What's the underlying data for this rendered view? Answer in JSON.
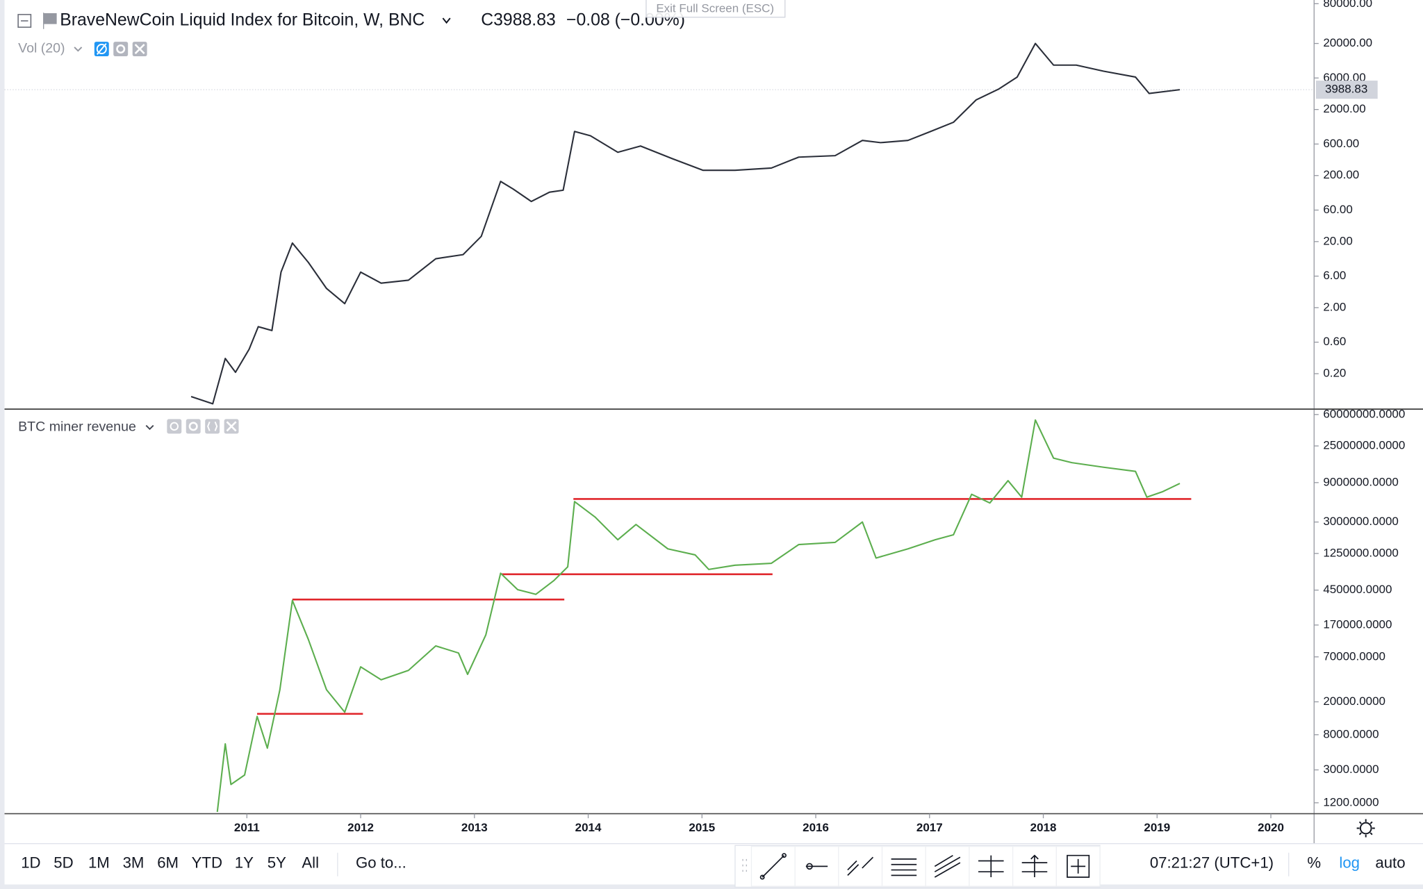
{
  "chart_data": [
    {
      "type": "line",
      "title": "BraveNewCoin Liquid Index for Bitcoin, W, BNC",
      "close_label": "C3988.83",
      "change_label": "−0.08 (−0.00%)",
      "indicator": "Vol (20)",
      "log_scale": true,
      "color": "#2a2e39",
      "x": [
        2010.51,
        2010.7,
        2010.81,
        2010.9,
        2011.02,
        2011.1,
        2011.22,
        2011.3,
        2011.4,
        2011.54,
        2011.7,
        2011.86,
        2012.0,
        2012.18,
        2012.42,
        2012.66,
        2012.9,
        2013.06,
        2013.23,
        2013.34,
        2013.5,
        2013.66,
        2013.78,
        2013.88,
        2014.02,
        2014.26,
        2014.46,
        2014.74,
        2015.01,
        2015.29,
        2015.61,
        2015.85,
        2016.17,
        2016.41,
        2016.57,
        2016.81,
        2017.01,
        2017.21,
        2017.41,
        2017.61,
        2017.77,
        2017.93,
        2018.09,
        2018.29,
        2018.53,
        2018.81,
        2018.93,
        2019.2
      ],
      "values": [
        0.09,
        0.07,
        0.34,
        0.21,
        0.47,
        1.03,
        0.9,
        6.9,
        19,
        9.7,
        3.9,
        2.3,
        6.9,
        4.7,
        5.2,
        11,
        12.7,
        24,
        163,
        125,
        81,
        112,
        120,
        930,
        800,
        450,
        560,
        360,
        240,
        240,
        260,
        380,
        400,
        680,
        630,
        680,
        930,
        1280,
        2800,
        4100,
        6200,
        20000,
        9400,
        9400,
        7600,
        6200,
        3500,
        3988.83
      ],
      "last_value": 3988.83,
      "xlim": [
        2008.87,
        2020.38
      ],
      "ylim": [
        0.06,
        91000
      ],
      "yticks": [
        {
          "value": 80000,
          "label": "80000.00"
        },
        {
          "value": 20000,
          "label": "20000.00"
        },
        {
          "value": 6000,
          "label": "6000.00"
        },
        {
          "value": 2000,
          "label": "2000.00"
        },
        {
          "value": 600,
          "label": "600.00"
        },
        {
          "value": 200,
          "label": "200.00"
        },
        {
          "value": 60,
          "label": "60.00"
        },
        {
          "value": 20,
          "label": "20.00"
        },
        {
          "value": 6,
          "label": "6.00"
        },
        {
          "value": 2,
          "label": "2.00"
        },
        {
          "value": 0.6,
          "label": "0.60"
        },
        {
          "value": 0.2,
          "label": "0.20"
        }
      ]
    },
    {
      "type": "line",
      "title": "BTC miner revenue",
      "log_scale": true,
      "color": "#5cae4e",
      "x": [
        2010.74,
        2010.81,
        2010.86,
        2010.98,
        2011.09,
        2011.18,
        2011.29,
        2011.4,
        2011.54,
        2011.7,
        2011.86,
        2012.0,
        2012.18,
        2012.42,
        2012.66,
        2012.86,
        2012.94,
        2013.1,
        2013.23,
        2013.38,
        2013.54,
        2013.7,
        2013.82,
        2013.88,
        2014.06,
        2014.26,
        2014.42,
        2014.7,
        2014.94,
        2015.06,
        2015.29,
        2015.61,
        2015.85,
        2016.17,
        2016.41,
        2016.53,
        2016.81,
        2017.05,
        2017.21,
        2017.37,
        2017.53,
        2017.69,
        2017.81,
        2017.93,
        2018.09,
        2018.25,
        2018.53,
        2018.81,
        2018.91,
        2019.05,
        2019.2
      ],
      "values": [
        930,
        6200,
        2000,
        2600,
        13300,
        5500,
        28000,
        337000,
        114000,
        28000,
        15000,
        53000,
        37000,
        48000,
        95000,
        78000,
        43000,
        129000,
        720000,
        456000,
        400000,
        590000,
        860000,
        5300000,
        3450000,
        1830000,
        2800000,
        1420000,
        1200000,
        800000,
        900000,
        950000,
        1600000,
        1700000,
        3000000,
        1100000,
        1420000,
        1830000,
        2100000,
        6500000,
        5100000,
        9500000,
        6000000,
        51500000,
        17800000,
        15700000,
        13800000,
        12300000,
        6000000,
        7000000,
        8800000
      ],
      "hlines_color": "#e0262b",
      "hlines": [
        {
          "value": 14300,
          "x": [
            2011.09,
            2012.02
          ]
        },
        {
          "value": 346000,
          "x": [
            2011.4,
            2013.79
          ]
        },
        {
          "value": 700000,
          "x": [
            2013.24,
            2015.62
          ]
        },
        {
          "value": 5700000,
          "x": [
            2013.87,
            2019.3
          ]
        }
      ],
      "xlim": [
        2008.87,
        2020.38
      ],
      "xticks": [
        2011,
        2012,
        2013,
        2014,
        2015,
        2016,
        2017,
        2018,
        2019,
        2020
      ],
      "ylim": [
        885,
        68000000
      ],
      "yticks": [
        {
          "value": 60000000,
          "label": "60000000.0000"
        },
        {
          "value": 25000000,
          "label": "25000000.0000"
        },
        {
          "value": 9000000,
          "label": "9000000.0000"
        },
        {
          "value": 3000000,
          "label": "3000000.0000"
        },
        {
          "value": 1250000,
          "label": "1250000.0000"
        },
        {
          "value": 450000,
          "label": "450000.0000"
        },
        {
          "value": 170000,
          "label": "170000.0000"
        },
        {
          "value": 70000,
          "label": "70000.0000"
        },
        {
          "value": 20000,
          "label": "20000.0000"
        },
        {
          "value": 8000,
          "label": "8000.0000"
        },
        {
          "value": 3000,
          "label": "3000.0000"
        },
        {
          "value": 1200,
          "label": "1200.0000"
        }
      ]
    }
  ],
  "ui": {
    "exit_fullscreen": "Exit Full Screen (ESC)",
    "ranges": [
      "1D",
      "5D",
      "1M",
      "3M",
      "6M",
      "YTD",
      "1Y",
      "5Y",
      "All"
    ],
    "goto": "Go to...",
    "clock": "07:21:27 (UTC+1)",
    "scale_buttons": [
      "%",
      "log",
      "auto"
    ]
  }
}
